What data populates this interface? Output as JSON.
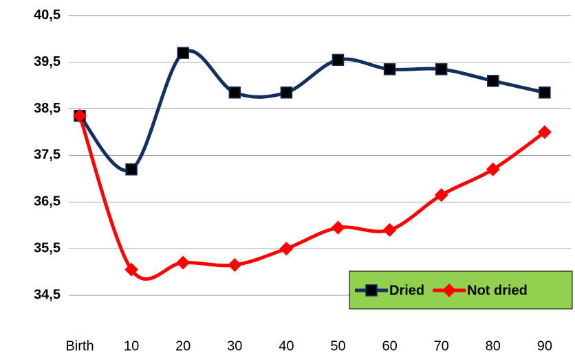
{
  "chart_data": {
    "type": "line",
    "categories": [
      "Birth",
      "10",
      "20",
      "30",
      "40",
      "50",
      "60",
      "70",
      "80",
      "90"
    ],
    "series": [
      {
        "name": "Dried",
        "color": "#132f5e",
        "marker_color": "#000000",
        "marker": "square",
        "values": [
          38.35,
          37.2,
          39.7,
          38.85,
          38.85,
          39.55,
          39.35,
          39.35,
          39.1,
          38.85
        ]
      },
      {
        "name": "Not dried",
        "color": "#ff0000",
        "marker_color": "#ff0000",
        "marker": "diamond",
        "values": [
          38.35,
          35.05,
          35.2,
          35.15,
          35.5,
          35.95,
          35.9,
          36.65,
          37.2,
          38.0
        ]
      }
    ],
    "ylim": [
      33.75,
      40.6
    ],
    "yticks": [
      {
        "value": 34.5,
        "label": "34,5"
      },
      {
        "value": 35.5,
        "label": "35,5"
      },
      {
        "value": 36.5,
        "label": "36,5"
      },
      {
        "value": 37.5,
        "label": "37,5"
      },
      {
        "value": 38.5,
        "label": "38,5"
      },
      {
        "value": 39.5,
        "label": "39,5"
      },
      {
        "value": 40.5,
        "label": "40,5"
      }
    ],
    "grid": true,
    "smooth": true,
    "legend": "lower right",
    "legend_background": "#92d050"
  }
}
